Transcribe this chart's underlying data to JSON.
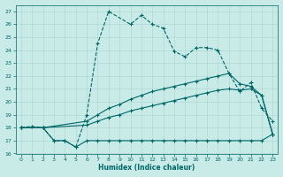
{
  "xlabel": "Humidex (Indice chaleur)",
  "bg_color": "#c8ebe8",
  "grid_color": "#aad4d0",
  "line_color": "#006666",
  "xlim": [
    -0.5,
    23.5
  ],
  "ylim": [
    16,
    27.5
  ],
  "xticks": [
    0,
    1,
    2,
    3,
    4,
    5,
    6,
    7,
    8,
    9,
    10,
    11,
    12,
    13,
    14,
    15,
    16,
    17,
    18,
    19,
    20,
    21,
    22,
    23
  ],
  "yticks": [
    16,
    17,
    18,
    19,
    20,
    21,
    22,
    23,
    24,
    25,
    26,
    27
  ],
  "line1_x": [
    0,
    1,
    2,
    3,
    4,
    5,
    6,
    7,
    8,
    10,
    11,
    12,
    13,
    14,
    15,
    16,
    17,
    18,
    19,
    20,
    21,
    22,
    23
  ],
  "line1_y": [
    18,
    18.1,
    18,
    17,
    17,
    16.5,
    19,
    24.5,
    27,
    26,
    26.7,
    26,
    25.7,
    23.9,
    23.5,
    24.2,
    24.2,
    24.0,
    22.2,
    20.8,
    21.5,
    19.5,
    18.5
  ],
  "line2_x": [
    0,
    2,
    6,
    7,
    8,
    9,
    10,
    11,
    12,
    13,
    14,
    15,
    16,
    17,
    18,
    19,
    20,
    21,
    22,
    23
  ],
  "line2_y": [
    18,
    18,
    18.5,
    19,
    19.5,
    19.8,
    20.2,
    20.5,
    20.8,
    21.0,
    21.2,
    21.4,
    21.6,
    21.8,
    22.0,
    22.2,
    21.4,
    21.2,
    20.5,
    17.5
  ],
  "line3_x": [
    0,
    2,
    6,
    7,
    8,
    9,
    10,
    11,
    12,
    13,
    14,
    15,
    16,
    17,
    18,
    19,
    20,
    21,
    22,
    23
  ],
  "line3_y": [
    18,
    18,
    18.2,
    18.5,
    18.8,
    19.0,
    19.3,
    19.5,
    19.7,
    19.9,
    20.1,
    20.3,
    20.5,
    20.7,
    20.9,
    21.0,
    20.9,
    21.0,
    20.5,
    17.5
  ],
  "line4_x": [
    0,
    2,
    3,
    4,
    5,
    6,
    7,
    8,
    9,
    10,
    11,
    12,
    13,
    14,
    15,
    16,
    17,
    18,
    19,
    20,
    21,
    22,
    23
  ],
  "line4_y": [
    18,
    18,
    17,
    17,
    16.5,
    17,
    17,
    17,
    17,
    17,
    17,
    17,
    17,
    17,
    17,
    17,
    17,
    17,
    17,
    17,
    17,
    17,
    17.5
  ]
}
